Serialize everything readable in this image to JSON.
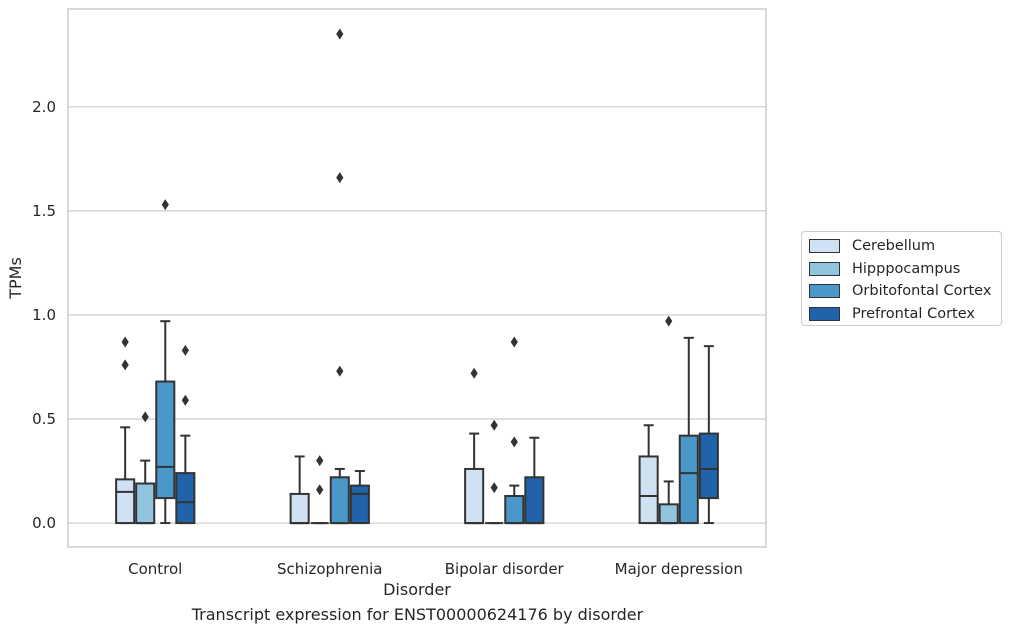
{
  "caption": "Transcript expression for ENST00000624176 by disorder",
  "colors": {
    "Cerebellum": "#cfe1f2",
    "Hipppocampus": "#93c4de",
    "Orbitofontal Cortex": "#4a98c9",
    "Prefrontal Cortex": "#2163aa",
    "line": "#333333",
    "grid": "#cccccc"
  },
  "chart_data": {
    "type": "box",
    "title": "",
    "xlabel": "Disorder",
    "ylabel": "TPMs",
    "ylim": [
      -0.115,
      2.47
    ],
    "yticks": [
      0.0,
      0.5,
      1.0,
      1.5,
      2.0
    ],
    "ytick_labels": [
      "0.0",
      "0.5",
      "1.0",
      "1.5",
      "2.0"
    ],
    "grid": true,
    "legend_position": "right",
    "categories": [
      "Control",
      "Schizophrenia",
      "Bipolar disorder",
      "Major depression"
    ],
    "series": [
      {
        "name": "Cerebellum",
        "boxes": [
          {
            "whisker_low": 0.0,
            "q1": 0.0,
            "median": 0.15,
            "q3": 0.21,
            "whisker_high": 0.46,
            "outliers": [
              0.76,
              0.87
            ]
          },
          {
            "whisker_low": 0.0,
            "q1": 0.0,
            "median": 0.0,
            "q3": 0.14,
            "whisker_high": 0.32,
            "outliers": []
          },
          {
            "whisker_low": 0.0,
            "q1": 0.0,
            "median": 0.0,
            "q3": 0.26,
            "whisker_high": 0.43,
            "outliers": [
              0.72
            ]
          },
          {
            "whisker_low": 0.0,
            "q1": 0.0,
            "median": 0.13,
            "q3": 0.32,
            "whisker_high": 0.47,
            "outliers": []
          }
        ]
      },
      {
        "name": "Hipppocampus",
        "boxes": [
          {
            "whisker_low": 0.0,
            "q1": 0.0,
            "median": 0.0,
            "q3": 0.19,
            "whisker_high": 0.3,
            "outliers": [
              0.51
            ]
          },
          {
            "whisker_low": 0.0,
            "q1": 0.0,
            "median": 0.0,
            "q3": 0.0,
            "whisker_high": 0.0,
            "outliers": [
              0.16,
              0.3
            ]
          },
          {
            "whisker_low": 0.0,
            "q1": 0.0,
            "median": 0.0,
            "q3": 0.0,
            "whisker_high": 0.0,
            "outliers": [
              0.17,
              0.47
            ]
          },
          {
            "whisker_low": 0.0,
            "q1": 0.0,
            "median": 0.0,
            "q3": 0.09,
            "whisker_high": 0.2,
            "outliers": [
              0.97
            ]
          }
        ]
      },
      {
        "name": "Orbitofontal Cortex",
        "boxes": [
          {
            "whisker_low": 0.0,
            "q1": 0.12,
            "median": 0.27,
            "q3": 0.68,
            "whisker_high": 0.97,
            "outliers": [
              1.53
            ]
          },
          {
            "whisker_low": 0.0,
            "q1": 0.0,
            "median": 0.0,
            "q3": 0.22,
            "whisker_high": 0.26,
            "outliers": [
              0.73,
              1.66,
              2.35
            ]
          },
          {
            "whisker_low": 0.0,
            "q1": 0.0,
            "median": 0.0,
            "q3": 0.13,
            "whisker_high": 0.18,
            "outliers": [
              0.39,
              0.87
            ]
          },
          {
            "whisker_low": 0.0,
            "q1": 0.0,
            "median": 0.24,
            "q3": 0.42,
            "whisker_high": 0.89,
            "outliers": []
          }
        ]
      },
      {
        "name": "Prefrontal Cortex",
        "boxes": [
          {
            "whisker_low": 0.0,
            "q1": 0.0,
            "median": 0.1,
            "q3": 0.24,
            "whisker_high": 0.42,
            "outliers": [
              0.59,
              0.83
            ]
          },
          {
            "whisker_low": 0.0,
            "q1": 0.0,
            "median": 0.14,
            "q3": 0.18,
            "whisker_high": 0.25,
            "outliers": []
          },
          {
            "whisker_low": 0.0,
            "q1": 0.0,
            "median": 0.0,
            "q3": 0.22,
            "whisker_high": 0.41,
            "outliers": []
          },
          {
            "whisker_low": 0.0,
            "q1": 0.12,
            "median": 0.26,
            "q3": 0.43,
            "whisker_high": 0.85,
            "outliers": []
          }
        ]
      }
    ]
  }
}
